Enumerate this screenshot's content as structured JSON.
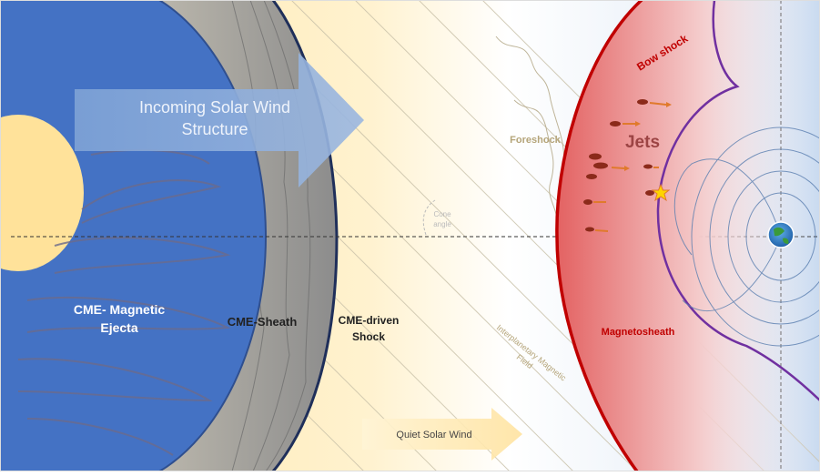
{
  "labels": {
    "incoming_line1": "Incoming Solar Wind",
    "incoming_line2": "Structure",
    "cme_ejecta_line1": "CME- Magnetic",
    "cme_ejecta_line2": "Ejecta",
    "cme_sheath": "CME-Sheath",
    "cme_shock_line1": "CME-driven",
    "cme_shock_line2": "Shock",
    "foreshock": "Foreshock",
    "cone_angle_line1": "Cone",
    "cone_angle_line2": "angle",
    "imf_line1": "Interplanetary Magnetic",
    "imf_line2": "Field",
    "quiet_wind": "Quiet Solar Wind",
    "bow_shock": "Bow shock",
    "jets": "Jets",
    "magnetosheath": "Magnetosheath"
  },
  "colors": {
    "ejecta_blue": "#4472c4",
    "ejecta_dark": "#2f4f8f",
    "sheath_gray": "#a6a6a6",
    "shock_navy": "#1f2f5a",
    "solar_wind_yellow": "#ffe29a",
    "bow_shock_red": "#c00000",
    "magnetopause_purple": "#7030a0",
    "field_line_blue": "#5b7fb0",
    "jet_brown": "#8b2a1a",
    "jet_arrow_orange": "#e07a2c",
    "foreshock_text": "#b5a57a"
  },
  "icons": {
    "earth": "earth-globe-icon",
    "sun_burst": "impact-star-icon"
  }
}
